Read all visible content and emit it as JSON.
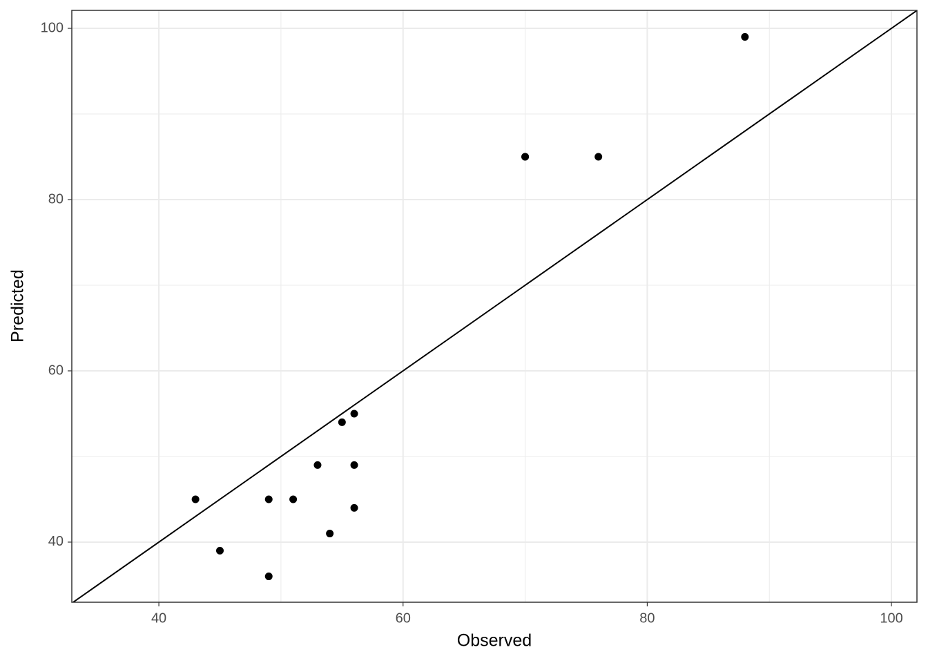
{
  "chart_data": {
    "type": "scatter",
    "x_label": "Observed",
    "y_label": "Predicted",
    "x": [
      43,
      45,
      49,
      49,
      51,
      53,
      54,
      55,
      56,
      56,
      56,
      70,
      70,
      76,
      88
    ],
    "values": [
      45,
      39,
      36,
      45,
      45,
      49,
      41,
      54,
      55,
      49,
      44,
      85,
      85,
      85,
      99
    ],
    "color": "#000000",
    "xlim": [
      32.87,
      102.09
    ],
    "ylim": [
      32.98,
      102.1
    ],
    "xticks": [
      40,
      60,
      80,
      100
    ],
    "yticks": [
      40,
      60,
      80,
      100
    ],
    "xminor": [
      50,
      70,
      90
    ],
    "yminor": [
      50,
      70,
      90
    ],
    "grid": true,
    "reference_line": {
      "slope": 1,
      "intercept": 0
    }
  }
}
